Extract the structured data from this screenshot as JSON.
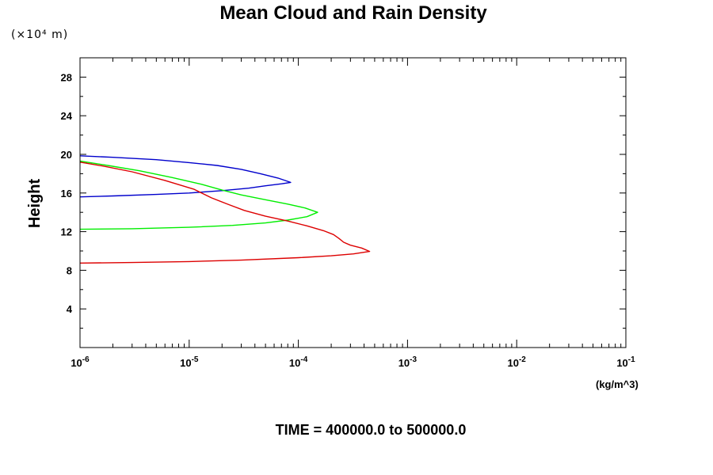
{
  "chart_data": {
    "type": "line",
    "title": "Mean Cloud and Rain Density",
    "xlabel": "(kg/m^3)",
    "ylabel": "Height",
    "y_scale_note": "(×10⁴ m)",
    "footer": "TIME = 400000.0 to 500000.0",
    "x_scale": "log",
    "xlim": [
      1e-06,
      0.1
    ],
    "ylim": [
      0,
      30
    ],
    "x_ticks": [
      {
        "value": 1e-06,
        "label": "10",
        "exp": "-6"
      },
      {
        "value": 1e-05,
        "label": "10",
        "exp": "-5"
      },
      {
        "value": 0.0001,
        "label": "10",
        "exp": "-4"
      },
      {
        "value": 0.001,
        "label": "10",
        "exp": "-3"
      },
      {
        "value": 0.01,
        "label": "10",
        "exp": "-2"
      },
      {
        "value": 0.1,
        "label": "10",
        "exp": "-1"
      }
    ],
    "y_ticks": [
      {
        "value": 4,
        "label": "4"
      },
      {
        "value": 8,
        "label": "8"
      },
      {
        "value": 12,
        "label": "12"
      },
      {
        "value": 16,
        "label": "16"
      },
      {
        "value": 20,
        "label": "20"
      },
      {
        "value": 24,
        "label": "24"
      },
      {
        "value": 28,
        "label": "28"
      }
    ],
    "grid": false,
    "series": [
      {
        "color": "#0000cc",
        "points": [
          [
            1e-06,
            15.6
          ],
          [
            2e-06,
            15.7
          ],
          [
            5e-06,
            15.85
          ],
          [
            1e-05,
            16.0
          ],
          [
            2e-05,
            16.25
          ],
          [
            3.5e-05,
            16.5
          ],
          [
            5e-05,
            16.75
          ],
          [
            7e-05,
            16.95
          ],
          [
            8.5e-05,
            17.1
          ],
          [
            6.5e-05,
            17.55
          ],
          [
            4.5e-05,
            18.0
          ],
          [
            3e-05,
            18.45
          ],
          [
            1.8e-05,
            18.85
          ],
          [
            1e-05,
            19.15
          ],
          [
            5e-06,
            19.45
          ],
          [
            2e-06,
            19.7
          ],
          [
            1e-06,
            19.85
          ]
        ]
      },
      {
        "color": "#00ee00",
        "points": [
          [
            1e-06,
            12.25
          ],
          [
            3e-06,
            12.3
          ],
          [
            1e-05,
            12.45
          ],
          [
            2.5e-05,
            12.65
          ],
          [
            5e-05,
            12.9
          ],
          [
            8e-05,
            13.2
          ],
          [
            0.00012,
            13.55
          ],
          [
            0.00015,
            14.0
          ],
          [
            0.000115,
            14.45
          ],
          [
            8e-05,
            14.85
          ],
          [
            5e-05,
            15.3
          ],
          [
            3e-05,
            15.8
          ],
          [
            2e-05,
            16.3
          ],
          [
            1.3e-05,
            16.9
          ],
          [
            7e-06,
            17.6
          ],
          [
            3.5e-06,
            18.3
          ],
          [
            1.8e-06,
            18.85
          ],
          [
            1e-06,
            19.3
          ]
        ]
      },
      {
        "color": "#dd0000",
        "points": [
          [
            1e-06,
            8.75
          ],
          [
            3e-06,
            8.8
          ],
          [
            1e-05,
            8.9
          ],
          [
            3e-05,
            9.05
          ],
          [
            0.0001,
            9.3
          ],
          [
            0.0002,
            9.5
          ],
          [
            0.00032,
            9.7
          ],
          [
            0.00045,
            9.95
          ],
          [
            0.00038,
            10.3
          ],
          [
            0.0003,
            10.6
          ],
          [
            0.00026,
            10.9
          ],
          [
            0.000235,
            11.3
          ],
          [
            0.00021,
            11.7
          ],
          [
            0.00017,
            12.1
          ],
          [
            0.00012,
            12.6
          ],
          [
            8e-05,
            13.1
          ],
          [
            5e-05,
            13.6
          ],
          [
            3.2e-05,
            14.2
          ],
          [
            2.3e-05,
            14.8
          ],
          [
            1.6e-05,
            15.5
          ],
          [
            1.1e-05,
            16.4
          ],
          [
            6e-06,
            17.3
          ],
          [
            3e-06,
            18.2
          ],
          [
            1.6e-06,
            18.8
          ],
          [
            1e-06,
            19.2
          ]
        ]
      }
    ]
  }
}
